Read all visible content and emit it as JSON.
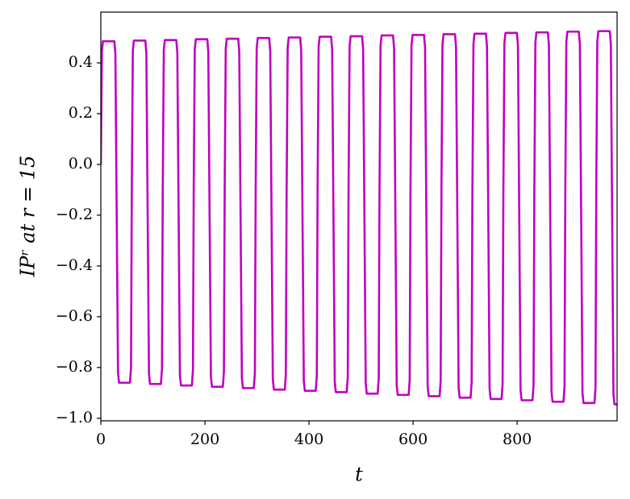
{
  "chart_data": {
    "type": "line",
    "xlabel": "t",
    "ylabel": "IPʳ at r = 15",
    "xlim": [
      0,
      992
    ],
    "ylim": [
      -1.01,
      0.6
    ],
    "xticks": [
      0,
      200,
      400,
      600,
      800
    ],
    "yticks": [
      {
        "value": -1.0,
        "label": "−1.0"
      },
      {
        "value": -0.8,
        "label": "−0.8"
      },
      {
        "value": -0.6,
        "label": "−0.6"
      },
      {
        "value": -0.4,
        "label": "−0.4"
      },
      {
        "value": -0.2,
        "label": "−0.2"
      },
      {
        "value": 0,
        "label": "0.0"
      },
      0.2,
      0.4
    ],
    "grid": false,
    "series": [
      {
        "color": "#c000c0",
        "x": [
          0,
          2,
          4,
          26,
          28,
          30.5,
          33,
          35,
          56,
          58,
          59.5,
          61.5,
          63.5,
          85.5,
          87.5,
          90,
          92.5,
          94.5,
          115.5,
          117.5,
          119,
          121,
          123,
          145,
          147,
          149.5,
          152,
          154,
          175,
          177,
          178.5,
          180.5,
          182.5,
          204.5,
          206.5,
          209,
          211.5,
          213.5,
          234.5,
          236.5,
          238,
          240,
          242,
          264,
          266,
          268.5,
          271,
          273,
          294,
          296,
          297.5,
          299.5,
          301.5,
          323.5,
          325.5,
          328,
          330.5,
          332.5,
          353.5,
          355.5,
          357,
          359,
          361,
          383,
          385,
          387.5,
          390,
          392,
          413,
          415,
          416.5,
          418.5,
          420.5,
          442.5,
          444.5,
          447,
          449.5,
          451.5,
          472.5,
          474.5,
          476,
          478,
          480,
          502,
          504,
          506.5,
          509,
          511,
          532,
          534,
          535.5,
          537.5,
          539.5,
          561.5,
          563.5,
          566,
          568.5,
          570.5,
          591.5,
          593.5,
          595,
          597,
          599,
          621,
          623,
          625.5,
          628,
          630,
          651,
          653,
          654.5,
          656.5,
          658.5,
          680.5,
          682.5,
          685,
          687.5,
          689.5,
          710.5,
          712.5,
          714,
          716,
          718,
          740,
          742,
          744.5,
          747,
          749,
          770,
          772,
          773.5,
          775.5,
          777.5,
          799.5,
          801.5,
          804,
          806.5,
          808.5,
          829.5,
          831.5,
          833,
          835,
          837,
          859,
          861,
          863.5,
          866,
          868,
          889,
          891,
          892.5,
          894.5,
          896.5,
          918.5,
          920.5,
          923,
          925.5,
          927.5,
          948.5,
          950.5,
          952,
          954,
          956,
          978,
          980,
          982.5,
          985,
          987,
          992
        ],
        "values": [
          0,
          0.445,
          0.485,
          0.485,
          0.435,
          -0.2,
          -0.82,
          -0.86,
          -0.86,
          -0.8,
          -0.1,
          0.448,
          0.488,
          0.488,
          0.438,
          -0.2,
          -0.825,
          -0.865,
          -0.865,
          -0.805,
          -0.1,
          0.45,
          0.49,
          0.49,
          0.44,
          -0.2,
          -0.831,
          -0.871,
          -0.871,
          -0.811,
          -0.1,
          0.453,
          0.493,
          0.493,
          0.443,
          -0.2,
          -0.836,
          -0.876,
          -0.876,
          -0.816,
          -0.1,
          0.455,
          0.495,
          0.495,
          0.445,
          -0.2,
          -0.841,
          -0.881,
          -0.881,
          -0.821,
          -0.1,
          0.458,
          0.498,
          0.498,
          0.448,
          -0.2,
          -0.847,
          -0.887,
          -0.887,
          -0.827,
          -0.1,
          0.46,
          0.5,
          0.5,
          0.45,
          -0.2,
          -0.852,
          -0.892,
          -0.892,
          -0.832,
          -0.1,
          0.463,
          0.503,
          0.503,
          0.453,
          -0.2,
          -0.857,
          -0.897,
          -0.897,
          -0.837,
          -0.1,
          0.465,
          0.505,
          0.505,
          0.455,
          -0.2,
          -0.863,
          -0.903,
          -0.903,
          -0.843,
          -0.1,
          0.468,
          0.508,
          0.508,
          0.458,
          -0.2,
          -0.868,
          -0.908,
          -0.908,
          -0.848,
          -0.1,
          0.47,
          0.51,
          0.51,
          0.46,
          -0.2,
          -0.873,
          -0.913,
          -0.913,
          -0.853,
          -0.1,
          0.473,
          0.513,
          0.513,
          0.463,
          -0.2,
          -0.879,
          -0.919,
          -0.919,
          -0.859,
          -0.1,
          0.475,
          0.515,
          0.515,
          0.465,
          -0.2,
          -0.884,
          -0.924,
          -0.924,
          -0.864,
          -0.1,
          0.478,
          0.518,
          0.518,
          0.468,
          -0.2,
          -0.889,
          -0.929,
          -0.929,
          -0.869,
          -0.1,
          0.48,
          0.52,
          0.52,
          0.47,
          -0.2,
          -0.895,
          -0.935,
          -0.935,
          -0.875,
          -0.1,
          0.483,
          0.523,
          0.523,
          0.473,
          -0.2,
          -0.9,
          -0.94,
          -0.94,
          -0.88,
          -0.1,
          0.485,
          0.525,
          0.525,
          0.475,
          -0.2,
          -0.905,
          -0.945,
          -0.945
        ]
      }
    ]
  }
}
